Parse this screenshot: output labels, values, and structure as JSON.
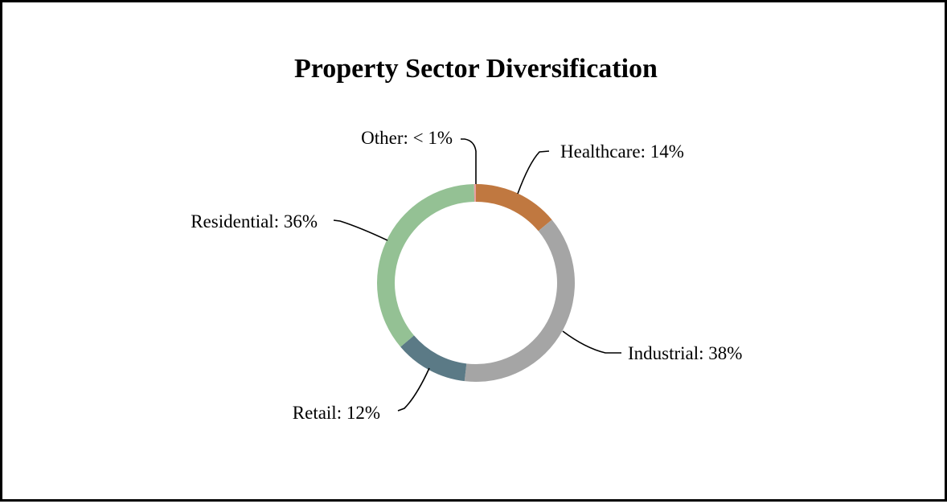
{
  "chart_data": {
    "type": "pie",
    "variant": "donut",
    "title": "Property Sector Diversification",
    "slices": [
      {
        "category": "Healthcare",
        "value": 14,
        "label": "Healthcare: 14%",
        "color": "#c07840"
      },
      {
        "category": "Industrial",
        "value": 38,
        "label": "Industrial: 38%",
        "color": "#a5a5a5"
      },
      {
        "category": "Retail",
        "value": 12,
        "label": "Retail: 12%",
        "color": "#5b7a86"
      },
      {
        "category": "Residential",
        "value": 36,
        "label": "Residential: 36%",
        "color": "#94c194"
      },
      {
        "category": "Other",
        "value": 0.3,
        "label": "Other: < 1%",
        "color": "#e8a0a0"
      }
    ],
    "start_angle_deg": 0,
    "direction": "clockwise",
    "legend": "none",
    "data_labels": "outside-with-leader-lines"
  }
}
